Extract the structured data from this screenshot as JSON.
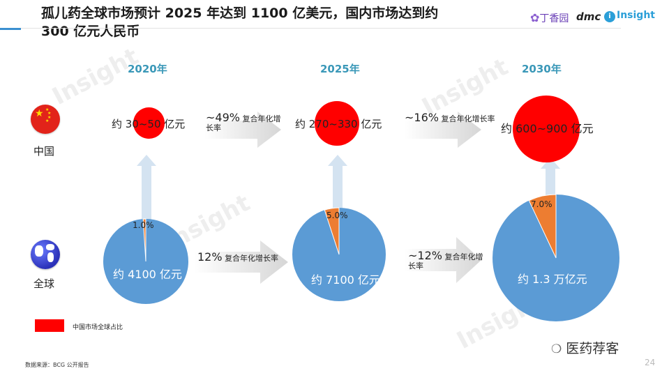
{
  "title": {
    "line1": "孤儿药全球市场预计 2025 年达到 1100 亿美元，国内市场达到约",
    "line2": "300 亿元人民币"
  },
  "logos": {
    "dxy": "丁香园",
    "dmc": "dmc",
    "insight": "Insight"
  },
  "watermark": "Insight",
  "years": [
    "2020年",
    "2025年",
    "2030年"
  ],
  "regions": {
    "china": "中国",
    "global": "全球"
  },
  "china_market": [
    "约 30~50 亿元",
    "约 270~330 亿元",
    "约 600~900 亿元"
  ],
  "global_market": [
    "约 4100 亿元",
    "约 7100 亿元",
    "约 1.3 万亿元"
  ],
  "china_share_labels": [
    "1.0%",
    "5.0%",
    "7.0%"
  ],
  "china_growth": [
    {
      "pct": "~49%",
      "text": "复合年化增长率"
    },
    {
      "pct": "~16%",
      "text": "复合年化增长率"
    }
  ],
  "global_growth": [
    {
      "pct": "12%",
      "text": "复合年化增长率"
    },
    {
      "pct": "~12%",
      "text": "复合年化增长率"
    }
  ],
  "legend": "中国市场全球占比",
  "source": "数据来源：BCG 公开报告",
  "wechat_account": "医药荐客",
  "page_number": "24",
  "colors": {
    "china_dot": "#ff0000",
    "global_pie": "#5b9bd5",
    "china_share": "#ed7d31",
    "year_text": "#3a98b8",
    "arrow": "#d9d9d9"
  },
  "chart_data": {
    "type": "pie",
    "categories": [
      "2020年",
      "2025年",
      "2030年"
    ],
    "series": [
      {
        "name": "中国市场全球占比",
        "values": [
          1.0,
          5.0,
          7.0
        ]
      }
    ]
  }
}
